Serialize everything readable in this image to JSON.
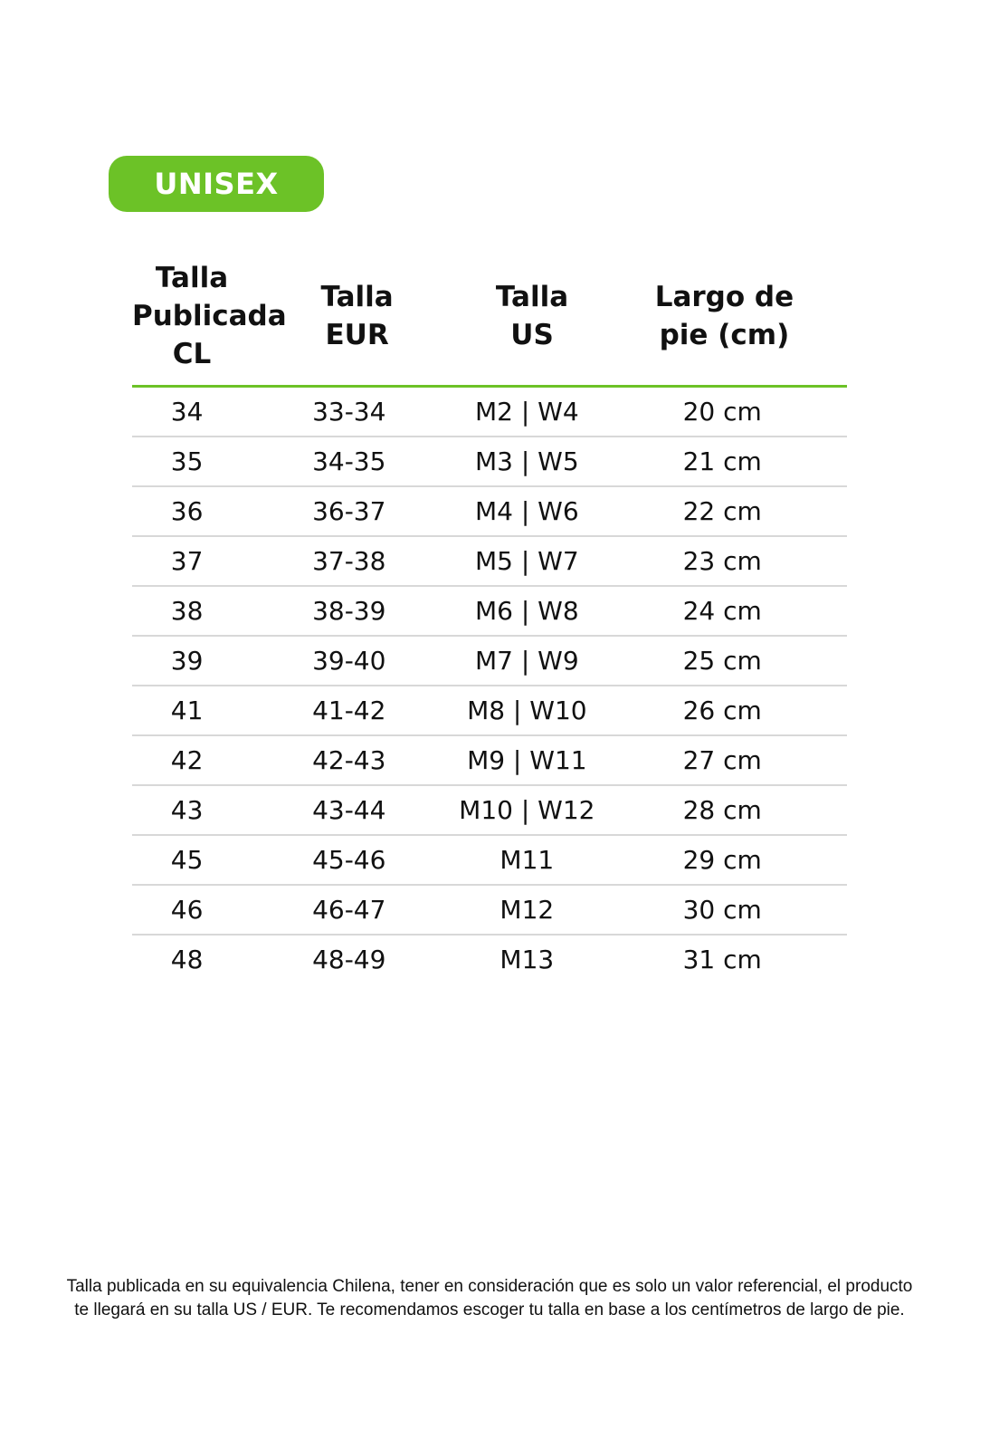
{
  "badge": {
    "label": "UNISEX",
    "color": "#6cc227"
  },
  "table": {
    "headers": [
      "Talla\nPublicada\nCL",
      "Talla\nEUR",
      "Talla\nUS",
      "Largo de\npie (cm)"
    ],
    "rows": [
      [
        "34",
        "33-34",
        "M2 | W4",
        "20 cm"
      ],
      [
        "35",
        "34-35",
        "M3 | W5",
        "21 cm"
      ],
      [
        "36",
        "36-37",
        "M4 | W6",
        "22 cm"
      ],
      [
        "37",
        "37-38",
        "M5 | W7",
        "23 cm"
      ],
      [
        "38",
        "38-39",
        "M6 | W8",
        "24 cm"
      ],
      [
        "39",
        "39-40",
        "M7 | W9",
        "25 cm"
      ],
      [
        "41",
        "41-42",
        "M8 | W10",
        "26 cm"
      ],
      [
        "42",
        "42-43",
        "M9 | W11",
        "27 cm"
      ],
      [
        "43",
        "43-44",
        "M10 | W12",
        "28 cm"
      ],
      [
        "45",
        "45-46",
        "M11",
        "29 cm"
      ],
      [
        "46",
        "46-47",
        "M12",
        "30 cm"
      ],
      [
        "48",
        "48-49",
        "M13",
        "31 cm"
      ]
    ]
  },
  "footnote": {
    "line1": "Talla publicada en su equivalencia Chilena, tener en consideración que es solo un valor referencial, el producto",
    "line2": "te llegará en su talla US / EUR. Te recomendamos escoger tu talla en base a los centímetros de largo de pie."
  }
}
